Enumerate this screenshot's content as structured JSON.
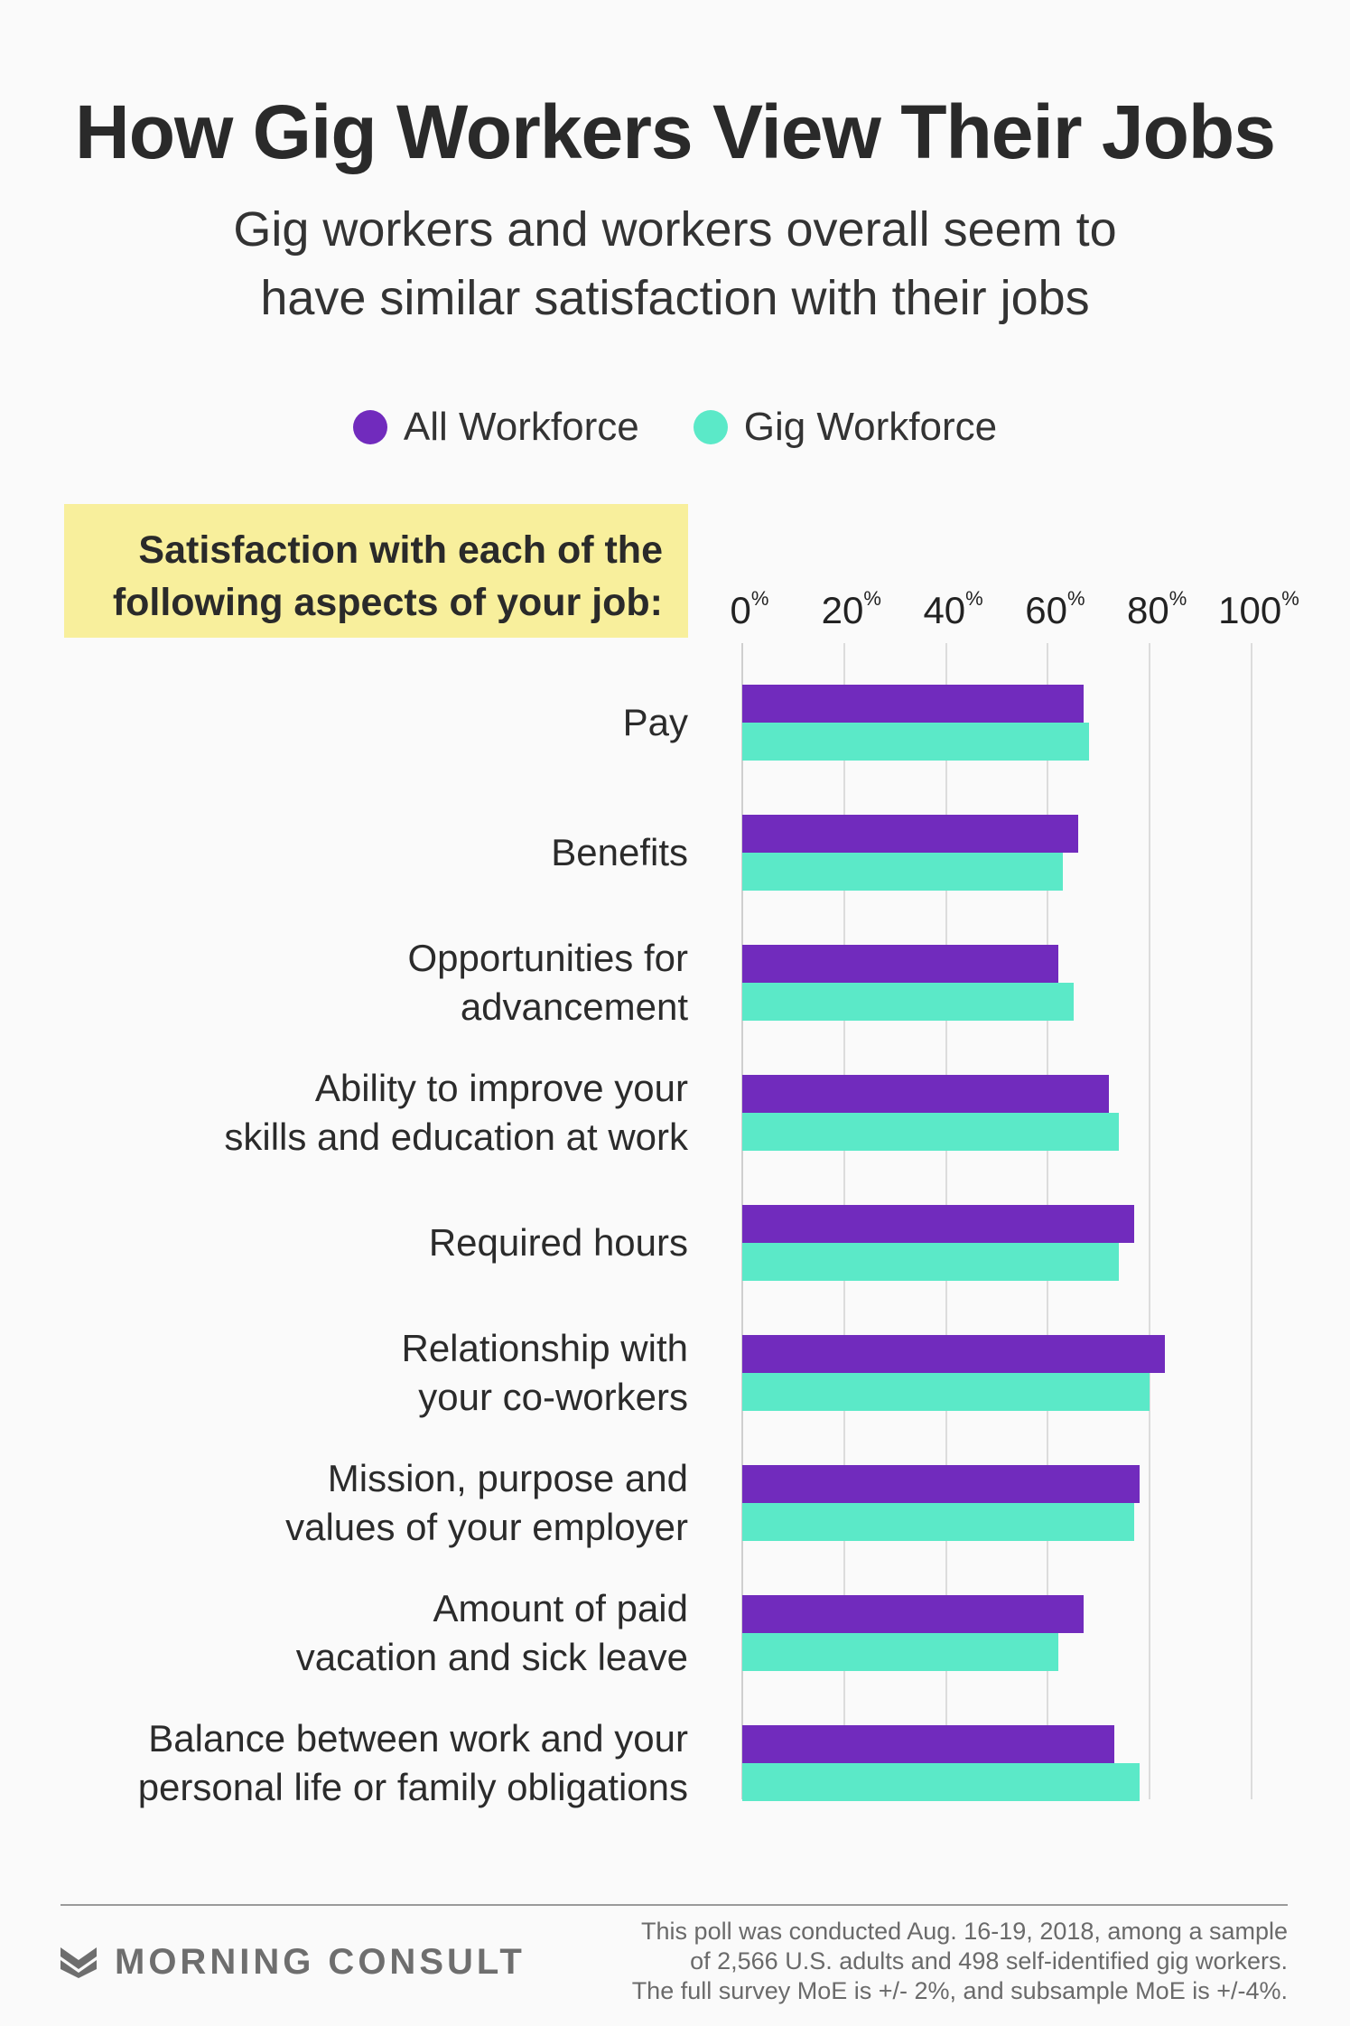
{
  "header": {
    "title": "How Gig Workers View Their Jobs",
    "subtitle_line1": "Gig workers and workers overall seem to",
    "subtitle_line2": "have similar satisfaction with their jobs"
  },
  "question": {
    "line1": "Satisfaction with each of the",
    "line2": "following aspects of your job:"
  },
  "colors": {
    "all": "#712bbd",
    "gig": "#5be9c8",
    "highlight": "#f8ef9c"
  },
  "chart_data": {
    "type": "bar",
    "orientation": "horizontal",
    "title": "How Gig Workers View Their Jobs",
    "xlabel": "",
    "ylabel": "",
    "xlim": [
      0,
      100
    ],
    "ticks": [
      {
        "value": 0,
        "label": "0",
        "suffix": "%"
      },
      {
        "value": 20,
        "label": "20",
        "suffix": "%"
      },
      {
        "value": 40,
        "label": "40",
        "suffix": "%"
      },
      {
        "value": 60,
        "label": "60",
        "suffix": "%"
      },
      {
        "value": 80,
        "label": "80",
        "suffix": "%"
      },
      {
        "value": 100,
        "label": "100",
        "suffix": "%"
      }
    ],
    "grid": true,
    "legend_position": "top-center",
    "categories": [
      "Pay",
      "Benefits",
      "Opportunities for\nadvancement",
      "Ability to improve your\nskills and education at work",
      "Required hours",
      "Relationship with\nyour co-workers",
      "Mission, purpose and\nvalues of your employer",
      "Amount of paid\nvacation and sick leave",
      "Balance between work and your\npersonal life or family obligations"
    ],
    "series": [
      {
        "name": "All Workforce",
        "values": [
          67,
          66,
          62,
          72,
          77,
          83,
          78,
          67,
          73
        ]
      },
      {
        "name": "Gig Workforce",
        "values": [
          68,
          63,
          65,
          74,
          74,
          80,
          77,
          62,
          78
        ]
      }
    ]
  },
  "footer": {
    "brand": "MORNING CONSULT",
    "note_line1": "This poll was conducted Aug. 16-19, 2018, among a sample",
    "note_line2": "of 2,566 U.S. adults and 498 self-identified gig workers.",
    "note_line3": "The full survey MoE is +/- 2%, and subsample MoE is +/-4%."
  }
}
